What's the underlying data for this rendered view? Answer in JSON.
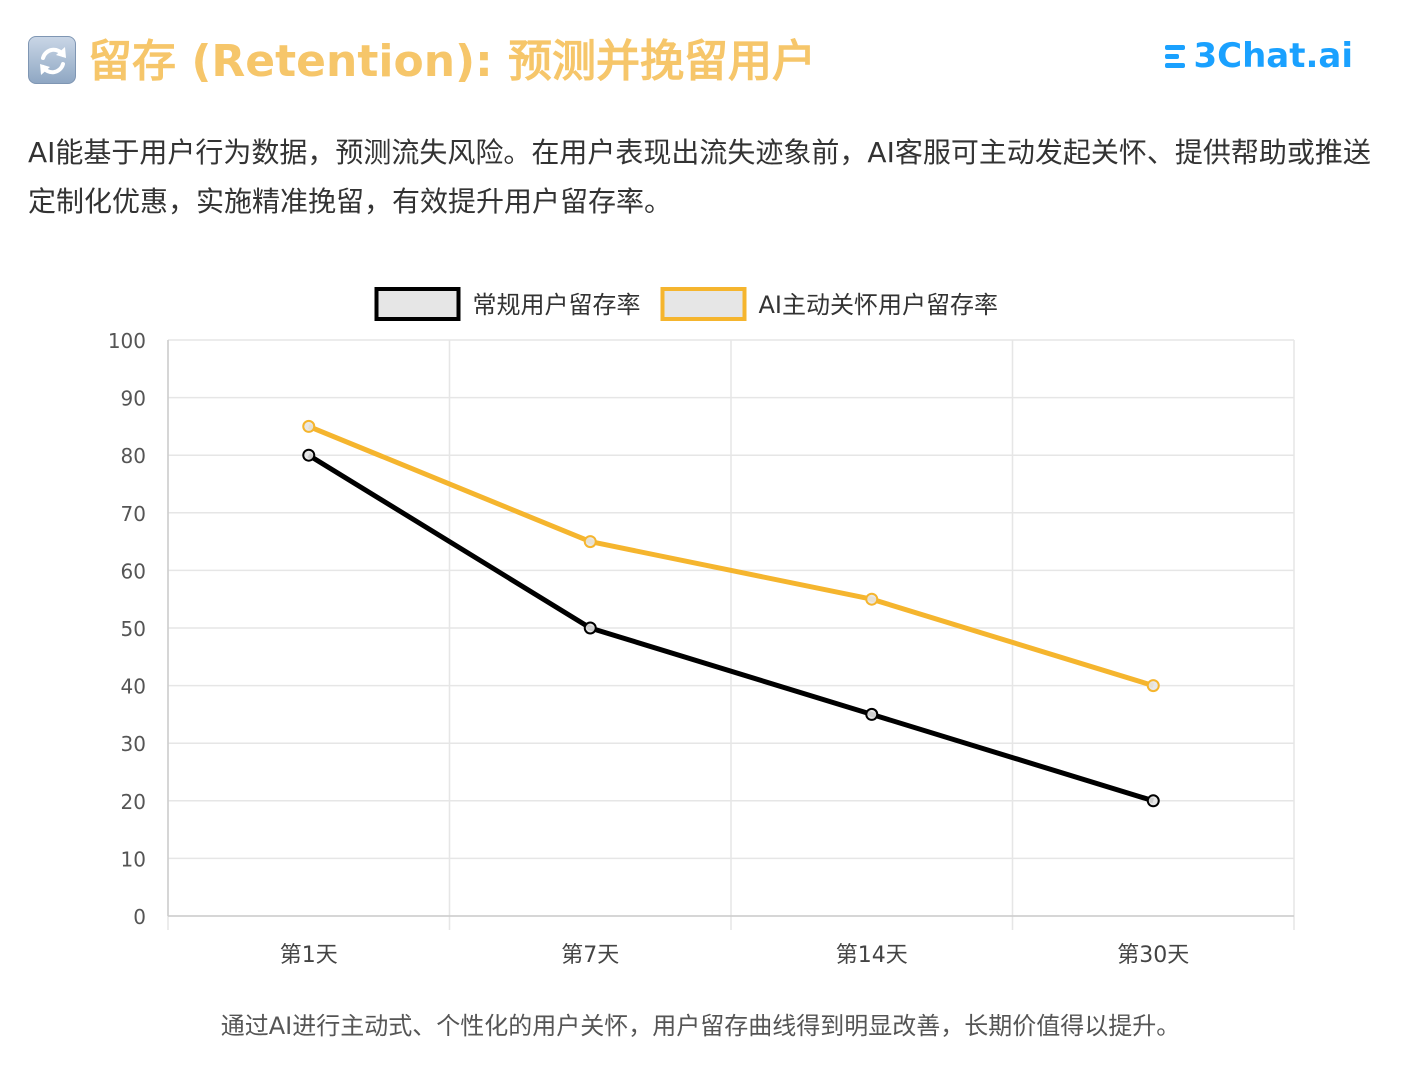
{
  "header": {
    "title": "留存 (Retention): 预测并挽留用户",
    "icon": "refresh-arrows-icon",
    "brand": "3Chat.ai",
    "brand_color": "#1aa1ff",
    "title_color": "#f6c66a"
  },
  "intro": {
    "text": "AI能基于用户行为数据，预测流失风险。在用户表现出流失迹象前，AI客服可主动发起关怀、提供帮助或推送定制化优惠，实施精准挽留，有效提升用户留存率。"
  },
  "chart_data": {
    "type": "line",
    "categories": [
      "第1天",
      "第7天",
      "第14天",
      "第30天"
    ],
    "series": [
      {
        "name": "常规用户留存率",
        "values": [
          80,
          50,
          35,
          20
        ],
        "color": "#000000"
      },
      {
        "name": "AI主动关怀用户留存率",
        "values": [
          85,
          65,
          55,
          40
        ],
        "color": "#f5b52e"
      }
    ],
    "ylim": [
      0,
      100
    ],
    "yticks": [
      0,
      10,
      20,
      30,
      40,
      50,
      60,
      70,
      80,
      90,
      100
    ],
    "legend": "top",
    "grid": true
  },
  "caption": {
    "text": "通过AI进行主动式、个性化的用户关怀，用户留存曲线得到明显改善，长期价值得以提升。"
  }
}
